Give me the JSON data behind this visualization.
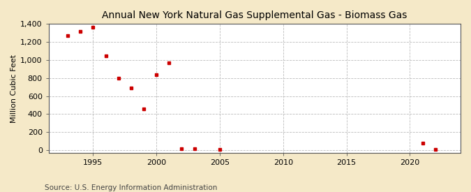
{
  "title": "Annual New York Natural Gas Supplemental Gas - Biomass Gas",
  "ylabel": "Million Cubic Feet",
  "source": "Source: U.S. Energy Information Administration",
  "background_color": "#f5e9c8",
  "plot_background_color": "#ffffff",
  "marker_color": "#cc0000",
  "marker": "s",
  "marker_size": 3.5,
  "xlim": [
    1991.5,
    2024
  ],
  "ylim": [
    -30,
    1400
  ],
  "yticks": [
    0,
    200,
    400,
    600,
    800,
    1000,
    1200,
    1400
  ],
  "ytick_labels": [
    "0",
    "200",
    "400",
    "600",
    "800",
    "1,000",
    "1,200",
    "1,400"
  ],
  "xticks": [
    1995,
    2000,
    2005,
    2010,
    2015,
    2020
  ],
  "data": {
    "years": [
      1993,
      1994,
      1995,
      1996,
      1997,
      1998,
      1999,
      2000,
      2001,
      2002,
      2003,
      2005,
      2021,
      2022
    ],
    "values": [
      1268,
      1320,
      1360,
      1050,
      800,
      690,
      460,
      840,
      970,
      20,
      18,
      8,
      80,
      10
    ]
  },
  "title_fontsize": 10,
  "tick_fontsize": 8,
  "ylabel_fontsize": 8,
  "source_fontsize": 7.5
}
